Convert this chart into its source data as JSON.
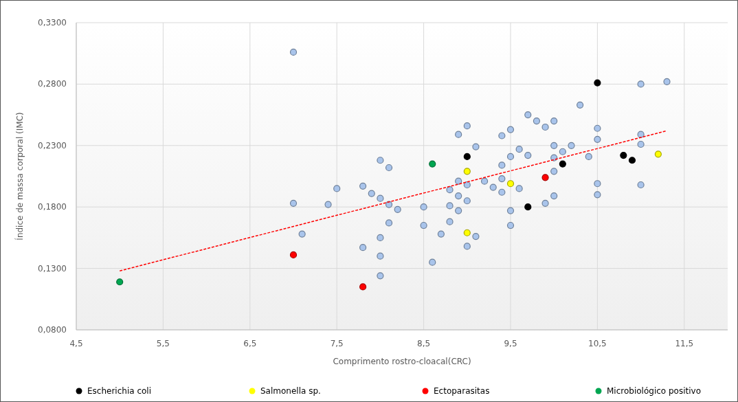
{
  "chart_data": {
    "type": "scatter",
    "xlabel": "Comprimento rostro-cloacal(CRC)",
    "ylabel": "Índice de massa corporal (IMC)",
    "xlim": [
      4.5,
      12.0
    ],
    "xticks": [
      {
        "value": 4.5,
        "label": "4,5"
      },
      {
        "value": 5.5,
        "label": "5,5"
      },
      {
        "value": 6.5,
        "label": "6,5"
      },
      {
        "value": 7.5,
        "label": "7,5"
      },
      {
        "value": 8.5,
        "label": "8,5"
      },
      {
        "value": 9.5,
        "label": "9,5"
      },
      {
        "value": 10.5,
        "label": "10,5"
      },
      {
        "value": 11.5,
        "label": "11,5"
      }
    ],
    "ylim": [
      0.08,
      0.33
    ],
    "yticks": [
      {
        "value": 0.08,
        "label": "0,0800"
      },
      {
        "value": 0.13,
        "label": "0,1300"
      },
      {
        "value": 0.18,
        "label": "0,1800"
      },
      {
        "value": 0.23,
        "label": "0,2300"
      },
      {
        "value": 0.28,
        "label": "0,2800"
      },
      {
        "value": 0.33,
        "label": "0,3300"
      }
    ],
    "grid": true,
    "legend": "bottom",
    "marker": "circle",
    "series": [
      {
        "color": "#a9c4eb",
        "x": [
          7.0,
          7.0,
          7.1,
          7.4,
          7.5,
          7.8,
          7.8,
          7.9,
          8.0,
          8.0,
          8.0,
          8.0,
          8.0,
          8.1,
          8.1,
          8.1,
          8.2,
          8.5,
          8.5,
          8.6,
          8.7,
          8.8,
          8.8,
          8.8,
          8.9,
          8.9,
          8.9,
          8.9,
          9.0,
          9.0,
          9.0,
          9.0,
          9.1,
          9.1,
          9.2,
          9.3,
          9.4,
          9.4,
          9.4,
          9.4,
          9.5,
          9.5,
          9.5,
          9.5,
          9.6,
          9.6,
          9.7,
          9.7,
          9.8,
          9.9,
          9.9,
          10.0,
          10.0,
          10.0,
          10.0,
          10.0,
          10.1,
          10.2,
          10.3,
          10.4,
          10.5,
          10.5,
          10.5,
          10.5,
          11.0,
          11.0,
          11.0,
          11.0,
          11.3
        ],
        "values": [
          0.306,
          0.183,
          0.158,
          0.182,
          0.195,
          0.197,
          0.147,
          0.191,
          0.218,
          0.187,
          0.155,
          0.14,
          0.124,
          0.212,
          0.182,
          0.167,
          0.178,
          0.18,
          0.165,
          0.135,
          0.158,
          0.194,
          0.181,
          0.168,
          0.239,
          0.201,
          0.189,
          0.177,
          0.246,
          0.198,
          0.185,
          0.148,
          0.229,
          0.156,
          0.201,
          0.196,
          0.238,
          0.214,
          0.203,
          0.192,
          0.243,
          0.221,
          0.177,
          0.165,
          0.227,
          0.195,
          0.255,
          0.222,
          0.25,
          0.245,
          0.183,
          0.25,
          0.23,
          0.22,
          0.209,
          0.189,
          0.225,
          0.23,
          0.263,
          0.221,
          0.244,
          0.235,
          0.199,
          0.19,
          0.28,
          0.239,
          0.231,
          0.198,
          0.282
        ]
      },
      {
        "name": "Escherichia coli",
        "color": "#000000",
        "x": [
          9.0,
          10.5,
          10.8,
          10.9,
          10.1,
          9.7
        ],
        "values": [
          0.221,
          0.281,
          0.222,
          0.218,
          0.215,
          0.18
        ]
      },
      {
        "name": "Salmonella sp.",
        "color": "#ffff00",
        "x": [
          9.0,
          9.5,
          9.0,
          11.2
        ],
        "values": [
          0.209,
          0.199,
          0.159,
          0.223
        ]
      },
      {
        "name": "Ectoparasitas",
        "color": "#ff0000",
        "x": [
          7.0,
          7.8,
          9.9
        ],
        "values": [
          0.141,
          0.115,
          0.204
        ]
      },
      {
        "name": "Microbiológico positivo",
        "color": "#00a651",
        "x": [
          5.0,
          8.6
        ],
        "values": [
          0.119,
          0.215
        ]
      },
      {
        "type": "line",
        "color": "#ff0000",
        "line_style": "dashed",
        "marker": "none",
        "x": [
          5.0,
          11.3
        ],
        "values": [
          0.128,
          0.242
        ]
      }
    ]
  }
}
